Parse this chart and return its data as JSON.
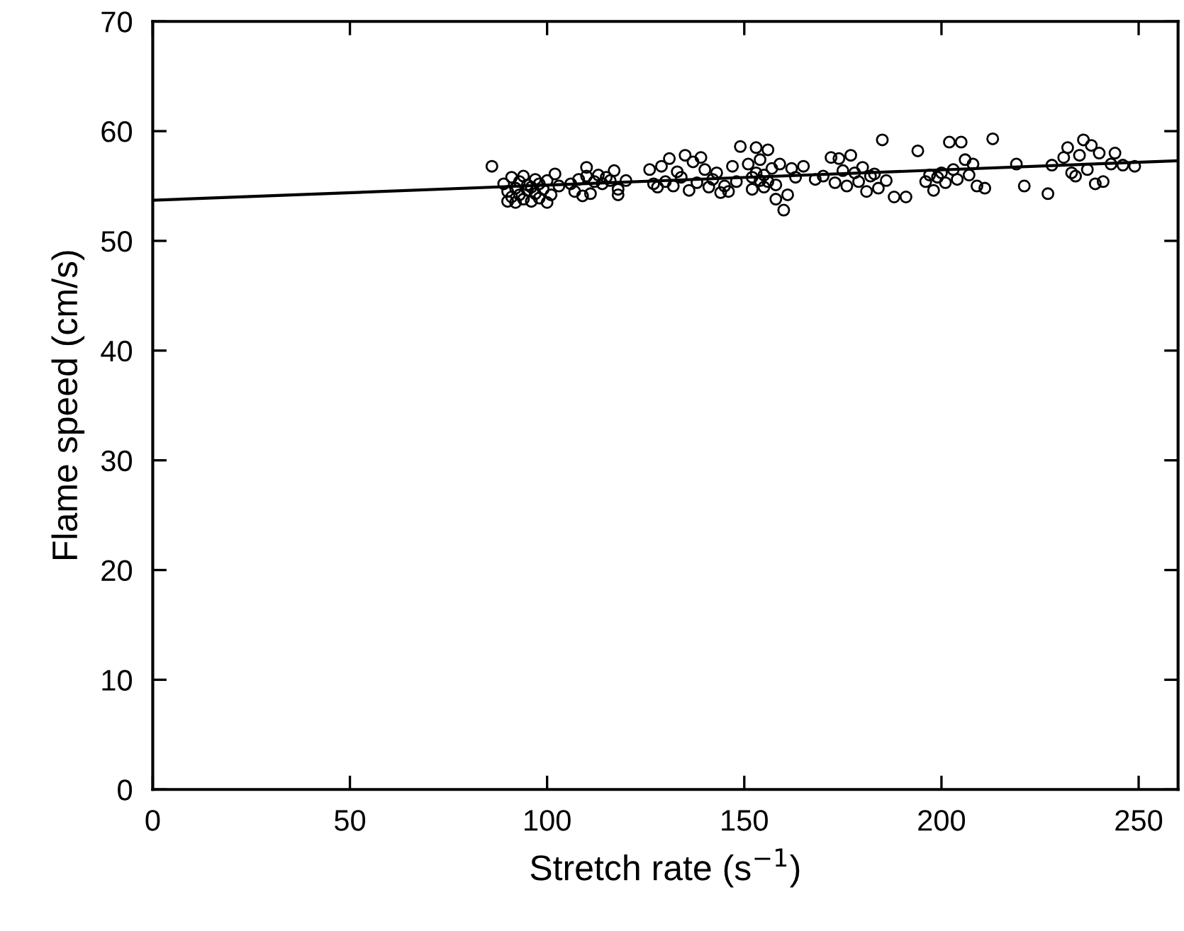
{
  "chart_data": {
    "type": "scatter",
    "xlabel": "Stretch rate (s$^{−1}$)",
    "ylabel": "Flame speed (cm/s)",
    "xlim": [
      0,
      260
    ],
    "ylim": [
      0,
      70
    ],
    "xticks": [
      0,
      50,
      100,
      150,
      200,
      250
    ],
    "yticks": [
      0,
      10,
      20,
      30,
      40,
      50,
      60,
      70
    ],
    "grid": false,
    "legend": false,
    "series": [
      {
        "marker": "circle",
        "color": "#000000",
        "x": [
          86,
          89,
          90,
          90,
          91,
          91,
          92,
          92,
          93,
          93,
          94,
          94,
          95,
          95,
          96,
          96,
          97,
          97,
          98,
          98,
          99,
          100,
          100,
          101,
          102,
          103,
          106,
          107,
          108,
          109,
          110,
          110,
          111,
          112,
          113,
          114,
          115,
          116,
          117,
          118,
          120,
          118,
          126,
          127,
          128,
          129,
          130,
          131,
          132,
          133,
          134,
          135,
          136,
          137,
          138,
          139,
          140,
          141,
          142,
          143,
          144,
          145,
          146,
          147,
          148,
          149,
          151,
          152,
          152,
          153,
          153,
          154,
          154,
          155,
          155,
          156,
          156,
          157,
          158,
          158,
          159,
          160,
          161,
          162,
          163,
          165,
          168,
          170,
          172,
          173,
          174,
          175,
          176,
          177,
          178,
          179,
          180,
          181,
          182,
          183,
          184,
          185,
          186,
          188,
          191,
          194,
          196,
          197,
          198,
          199,
          200,
          201,
          202,
          203,
          204,
          205,
          206,
          207,
          208,
          209,
          211,
          213,
          219,
          221,
          227,
          228,
          231,
          232,
          233,
          234,
          235,
          236,
          237,
          238,
          239,
          240,
          241,
          243,
          244,
          246,
          249
        ],
        "values": [
          56.8,
          55.2,
          54.5,
          53.6,
          55.8,
          54.0,
          54.8,
          53.5,
          55.4,
          54.2,
          55.9,
          53.8,
          54.6,
          55.1,
          53.6,
          54.9,
          55.6,
          54.3,
          53.9,
          55.2,
          54.7,
          53.5,
          55.5,
          54.2,
          56.1,
          55.0,
          55.2,
          54.5,
          55.6,
          54.1,
          56.7,
          55.9,
          54.3,
          55.4,
          56.0,
          55.2,
          55.8,
          55.5,
          56.4,
          54.2,
          55.5,
          54.7,
          56.5,
          55.2,
          54.9,
          56.8,
          55.4,
          57.5,
          55.0,
          56.3,
          55.8,
          57.8,
          54.6,
          57.2,
          55.3,
          57.6,
          56.5,
          54.9,
          55.6,
          56.2,
          54.4,
          55.0,
          54.5,
          56.8,
          55.4,
          58.6,
          57.0,
          55.8,
          54.7,
          58.5,
          56.2,
          55.5,
          57.4,
          56.0,
          54.9,
          58.3,
          55.4,
          56.6,
          55.1,
          53.8,
          57.0,
          52.8,
          54.2,
          56.6,
          55.8,
          56.8,
          55.6,
          55.9,
          57.6,
          55.3,
          57.5,
          56.4,
          55.0,
          57.8,
          56.2,
          55.4,
          56.7,
          54.5,
          55.9,
          56.1,
          54.8,
          59.2,
          55.5,
          54.0,
          54.0,
          58.2,
          55.4,
          56.0,
          54.6,
          55.8,
          56.2,
          55.3,
          59.0,
          56.5,
          55.6,
          59.0,
          57.4,
          56.0,
          57.0,
          55.0,
          54.8,
          59.3,
          57.0,
          55.0,
          54.3,
          56.9,
          57.6,
          58.5,
          56.2,
          55.9,
          57.8,
          59.2,
          56.5,
          58.7,
          55.2,
          58.0,
          55.4,
          57.0,
          58.0,
          56.9,
          56.8
        ]
      },
      {
        "type": "line",
        "marker": "none",
        "line_style": "solid",
        "color": "#000000",
        "x": [
          0,
          260
        ],
        "values": [
          53.7,
          57.3
        ]
      }
    ]
  }
}
